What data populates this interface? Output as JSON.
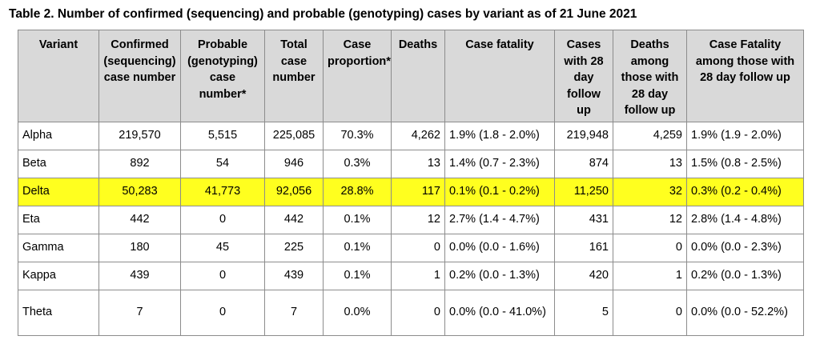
{
  "caption": "Table 2. Number of confirmed (sequencing) and probable (genotyping) cases by variant as of 21 June 2021",
  "highlight_color": "#ffff1f",
  "columns": [
    "Variant",
    "Confirmed (sequencing) case number",
    "Probable (genotyping) case number*",
    "Total case number",
    "Case proportion*",
    "Deaths",
    "Case fatality",
    "Cases with 28 day follow up",
    "Deaths among those with 28 day follow up",
    "Case Fatality among those with 28 day follow up"
  ],
  "rows": [
    {
      "variant": "Alpha",
      "confirmed": "219,570",
      "probable": "5,515",
      "total": "225,085",
      "proportion": "70.3%",
      "deaths": "4,262",
      "fatality": "1.9% (1.8 - 2.0%)",
      "followup_cases": "219,948",
      "followup_deaths": "4,259",
      "followup_fatality": "1.9% (1.9 - 2.0%)"
    },
    {
      "variant": "Beta",
      "confirmed": "892",
      "probable": "54",
      "total": "946",
      "proportion": "0.3%",
      "deaths": "13",
      "fatality": "1.4% (0.7 - 2.3%)",
      "followup_cases": "874",
      "followup_deaths": "13",
      "followup_fatality": "1.5% (0.8 - 2.5%)"
    },
    {
      "variant": "Delta",
      "confirmed": "50,283",
      "probable": "41,773",
      "total": "92,056",
      "proportion": "28.8%",
      "deaths": "117",
      "fatality": "0.1% (0.1 - 0.2%)",
      "followup_cases": "11,250",
      "followup_deaths": "32",
      "followup_fatality": "0.3% (0.2 - 0.4%)",
      "highlighted": true
    },
    {
      "variant": "Eta",
      "confirmed": "442",
      "probable": "0",
      "total": "442",
      "proportion": "0.1%",
      "deaths": "12",
      "fatality": "2.7% (1.4 - 4.7%)",
      "followup_cases": "431",
      "followup_deaths": "12",
      "followup_fatality": "2.8% (1.4 - 4.8%)"
    },
    {
      "variant": "Gamma",
      "confirmed": "180",
      "probable": "45",
      "total": "225",
      "proportion": "0.1%",
      "deaths": "0",
      "fatality": "0.0% (0.0 - 1.6%)",
      "followup_cases": "161",
      "followup_deaths": "0",
      "followup_fatality": "0.0% (0.0 - 2.3%)"
    },
    {
      "variant": "Kappa",
      "confirmed": "439",
      "probable": "0",
      "total": "439",
      "proportion": "0.1%",
      "deaths": "1",
      "fatality": "0.2% (0.0 - 1.3%)",
      "followup_cases": "420",
      "followup_deaths": "1",
      "followup_fatality": "0.2% (0.0 - 1.3%)"
    },
    {
      "variant": "Theta",
      "confirmed": "7",
      "probable": "0",
      "total": "7",
      "proportion": "0.0%",
      "deaths": "0",
      "fatality": "0.0% (0.0 - 41.0%)",
      "followup_cases": "5",
      "followup_deaths": "0",
      "followup_fatality": "0.0% (0.0 - 52.2%)"
    }
  ]
}
